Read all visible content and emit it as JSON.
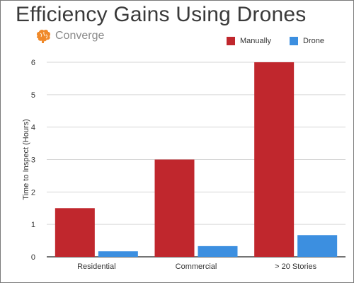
{
  "title": "Efficiency Gains Using Drones",
  "brand": {
    "name": "Converge",
    "icon": "brain-icon",
    "icon_color": "#f08a2a"
  },
  "colors": {
    "Manually": "#c0272d",
    "Drone": "#3c8fe0"
  },
  "chart_data": {
    "type": "bar",
    "title": "Efficiency Gains Using Drones",
    "categories": [
      "Residential",
      "Commercial",
      "> 20 Stories"
    ],
    "series": [
      {
        "name": "Manually",
        "values": [
          1.5,
          3,
          6
        ]
      },
      {
        "name": "Drone",
        "values": [
          0.17,
          0.33,
          0.67
        ]
      }
    ],
    "xlabel": "",
    "ylabel": "Time to Inspect (Hours)",
    "ylim": [
      0,
      6
    ],
    "yticks": [
      "0",
      "1",
      "2",
      "3",
      "4",
      "5",
      "6"
    ],
    "grid": true,
    "legend_position": "top-right"
  }
}
